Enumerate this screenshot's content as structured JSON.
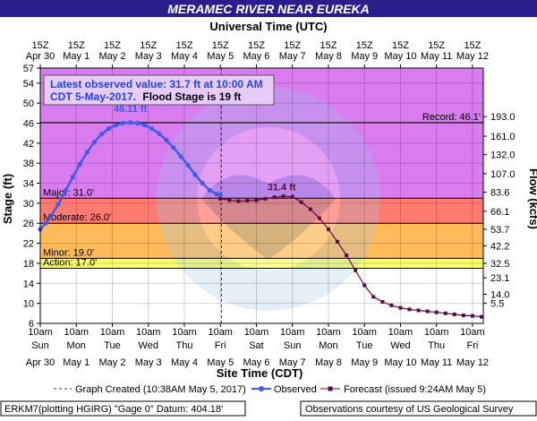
{
  "title": "MERAMEC RIVER NEAR EUREKA",
  "top_axis_title": "Universal Time (UTC)",
  "bottom_axis_title": "Site Time (CDT)",
  "left_axis_title": "Stage (ft)",
  "right_axis_title": "Flow (kcfs)",
  "colors": {
    "title_bg": "#2b1e8c",
    "major": "#d97cf0",
    "moderate": "#ff7b70",
    "minor": "#ffba5a",
    "action": "#ffff6e",
    "normal": "#ffffff",
    "observed": "#3d5de6",
    "forecast": "#5e0b45"
  },
  "info_box": {
    "line1": "Latest observed value: 31.7 ft at 10:00 AM",
    "line2_prefix": "CDT 5-May-2017.",
    "line2_suffix": "Flood Stage is 19 ft"
  },
  "legend": {
    "created": "Graph Created (10:38AM May 5, 2017)",
    "observed": "Observed",
    "forecast": "Forecast (issued 9:24AM May 5)"
  },
  "footer": {
    "left": "ERKM7(plotting HGIRG) \"Gage 0\" Datum: 404.18'",
    "right": "Observations courtesy of US Geological Survey"
  },
  "chart_data": {
    "type": "line",
    "x_unit": "days since 10am Sun Apr 30 (CDT)",
    "ylim": [
      6,
      57
    ],
    "yticks": [
      6,
      10,
      14,
      18,
      22,
      26,
      30,
      34,
      38,
      42,
      46,
      50,
      54,
      57
    ],
    "right_ticks": [
      {
        "stage": 10,
        "label": "5.5"
      },
      {
        "stage": 11.8,
        "label": "14.0"
      },
      {
        "stage": 15.1,
        "label": "23.1"
      },
      {
        "stage": 18,
        "label": "32.5"
      },
      {
        "stage": 21.5,
        "label": "42.2"
      },
      {
        "stage": 24.8,
        "label": "53.7"
      },
      {
        "stage": 28.4,
        "label": "66.1"
      },
      {
        "stage": 32.2,
        "label": "83.6"
      },
      {
        "stage": 35.9,
        "label": "107.0"
      },
      {
        "stage": 39.7,
        "label": "132.0"
      },
      {
        "stage": 43.4,
        "label": "161.0"
      },
      {
        "stage": 47.3,
        "label": "193.0"
      }
    ],
    "top_ticks": [
      {
        "line1": "15Z",
        "line2": "Apr 30"
      },
      {
        "line1": "15Z",
        "line2": "May 1"
      },
      {
        "line1": "15Z",
        "line2": "May 2"
      },
      {
        "line1": "15Z",
        "line2": "May 3"
      },
      {
        "line1": "15Z",
        "line2": "May 4"
      },
      {
        "line1": "15Z",
        "line2": "May 5"
      },
      {
        "line1": "15Z",
        "line2": "May 6"
      },
      {
        "line1": "15Z",
        "line2": "May 7"
      },
      {
        "line1": "15Z",
        "line2": "May 8"
      },
      {
        "line1": "15Z",
        "line2": "May 9"
      },
      {
        "line1": "15Z",
        "line2": "May 10"
      },
      {
        "line1": "15Z",
        "line2": "May 11"
      },
      {
        "line1": "15Z",
        "line2": "May 12"
      }
    ],
    "bottom_ticks": [
      {
        "line1": "10am",
        "line2": "Sun",
        "line3": "Apr 30"
      },
      {
        "line1": "10am",
        "line2": "Mon",
        "line3": "May 1"
      },
      {
        "line1": "10am",
        "line2": "Tue",
        "line3": "May 2"
      },
      {
        "line1": "10am",
        "line2": "Wed",
        "line3": "May 3"
      },
      {
        "line1": "10am",
        "line2": "Thu",
        "line3": "May 4"
      },
      {
        "line1": "10am",
        "line2": "Fri",
        "line3": "May 5"
      },
      {
        "line1": "10am",
        "line2": "Sat",
        "line3": "May 6"
      },
      {
        "line1": "10am",
        "line2": "Sun",
        "line3": "May 7"
      },
      {
        "line1": "10am",
        "line2": "Mon",
        "line3": "May 8"
      },
      {
        "line1": "10am",
        "line2": "Tue",
        "line3": "May 9"
      },
      {
        "line1": "10am",
        "line2": "Wed",
        "line3": "May 10"
      },
      {
        "line1": "10am",
        "line2": "Thu",
        "line3": "May 11"
      },
      {
        "line1": "10am",
        "line2": "Fri",
        "line3": "May 12"
      }
    ],
    "flood_bands": [
      {
        "name": "major",
        "from": 31,
        "to": 57
      },
      {
        "name": "moderate",
        "from": 26,
        "to": 31
      },
      {
        "name": "minor",
        "from": 19,
        "to": 26
      },
      {
        "name": "action",
        "from": 17,
        "to": 19
      },
      {
        "name": "normal",
        "from": 6,
        "to": 17
      }
    ],
    "threshold_lines": [
      {
        "label": "Record: 46.1'",
        "value": 46.1,
        "side": "right"
      },
      {
        "label": "Major: 31.0'",
        "value": 31,
        "side": "left"
      },
      {
        "label": "Moderate: 26.0'",
        "value": 26,
        "side": "left"
      },
      {
        "label": "Minor: 19.0'",
        "value": 19,
        "side": "left"
      },
      {
        "label": "Action: 17.0'",
        "value": 17,
        "side": "left"
      }
    ],
    "created_x": 5.03,
    "peak_labels": [
      {
        "text": "46.11 ft",
        "x": 2.5,
        "y": 48.2,
        "color": "observed"
      },
      {
        "text": "31.4 ft",
        "x": 6.7,
        "y": 32.6,
        "color": "forecast"
      }
    ],
    "series": [
      {
        "name": "Observed",
        "style": "observed",
        "points": [
          [
            0.0,
            24.8
          ],
          [
            0.15,
            26.0
          ],
          [
            0.3,
            27.5
          ],
          [
            0.5,
            29.8
          ],
          [
            0.7,
            32.5
          ],
          [
            0.9,
            35.2
          ],
          [
            1.1,
            37.8
          ],
          [
            1.3,
            40.2
          ],
          [
            1.5,
            42.2
          ],
          [
            1.7,
            43.8
          ],
          [
            1.9,
            44.9
          ],
          [
            2.1,
            45.6
          ],
          [
            2.3,
            46.0
          ],
          [
            2.5,
            46.11
          ],
          [
            2.7,
            46.0
          ],
          [
            2.9,
            45.6
          ],
          [
            3.1,
            44.9
          ],
          [
            3.3,
            43.9
          ],
          [
            3.5,
            42.6
          ],
          [
            3.7,
            41.1
          ],
          [
            3.9,
            39.4
          ],
          [
            4.1,
            37.6
          ],
          [
            4.3,
            35.7
          ],
          [
            4.5,
            34.0
          ],
          [
            4.7,
            32.6
          ],
          [
            4.9,
            31.8
          ],
          [
            5.0,
            31.7
          ]
        ]
      },
      {
        "name": "Forecast (issued 9:24AM May 5)",
        "style": "forecast",
        "points": [
          [
            5.0,
            30.9
          ],
          [
            5.25,
            30.6
          ],
          [
            5.5,
            30.4
          ],
          [
            5.75,
            30.5
          ],
          [
            6.0,
            30.6
          ],
          [
            6.25,
            30.9
          ],
          [
            6.5,
            31.2
          ],
          [
            6.75,
            31.4
          ],
          [
            7.0,
            31.3
          ],
          [
            7.25,
            30.2
          ],
          [
            7.5,
            28.8
          ],
          [
            7.75,
            27.0
          ],
          [
            8.0,
            24.8
          ],
          [
            8.25,
            22.3
          ],
          [
            8.5,
            19.6
          ],
          [
            8.75,
            16.6
          ],
          [
            9.0,
            13.6
          ],
          [
            9.25,
            11.3
          ],
          [
            9.5,
            10.3
          ],
          [
            9.75,
            9.6
          ],
          [
            10.0,
            9.1
          ],
          [
            10.25,
            8.8
          ],
          [
            10.5,
            8.6
          ],
          [
            10.75,
            8.4
          ],
          [
            11.0,
            8.2
          ],
          [
            11.25,
            8.0
          ],
          [
            11.5,
            7.8
          ],
          [
            11.75,
            7.6
          ],
          [
            12.0,
            7.5
          ],
          [
            12.25,
            7.3
          ]
        ]
      }
    ]
  }
}
